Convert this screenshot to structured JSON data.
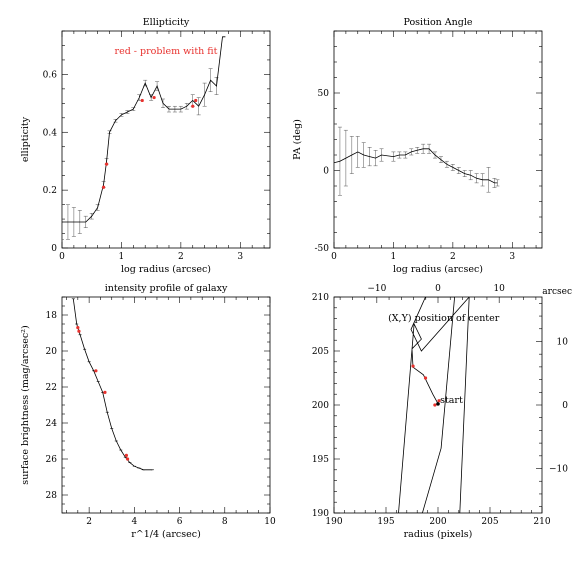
{
  "chart_data": [
    {
      "id": "ellipticity",
      "type": "line",
      "title": "Ellipticity",
      "xlabel": "log radius (arcsec)",
      "ylabel": "ellipticity",
      "xlim": [
        0,
        3.5
      ],
      "ylim": [
        0,
        0.75
      ],
      "xticks": [
        0,
        1,
        2,
        3
      ],
      "yticks": [
        0,
        0.2,
        0.4,
        0.6
      ],
      "ytick_labels": [
        "0",
        "0.2",
        "0.4",
        "0.6"
      ],
      "annotation": {
        "text": "red - problem with fit",
        "color": "#e8322e"
      },
      "x": [
        0.0,
        0.1,
        0.2,
        0.3,
        0.4,
        0.5,
        0.6,
        0.7,
        0.75,
        0.8,
        0.9,
        1.0,
        1.1,
        1.2,
        1.3,
        1.4,
        1.5,
        1.6,
        1.7,
        1.8,
        1.9,
        2.0,
        2.1,
        2.2,
        2.3,
        2.4,
        2.5,
        2.6,
        2.7,
        2.75
      ],
      "y": [
        0.09,
        0.09,
        0.09,
        0.09,
        0.09,
        0.11,
        0.14,
        0.22,
        0.3,
        0.4,
        0.44,
        0.46,
        0.47,
        0.48,
        0.52,
        0.57,
        0.52,
        0.56,
        0.5,
        0.48,
        0.48,
        0.48,
        0.49,
        0.51,
        0.49,
        0.53,
        0.58,
        0.56,
        0.73,
        0.73
      ],
      "err": [
        0.06,
        0.06,
        0.05,
        0.04,
        0.02,
        0.01,
        0.01,
        0.01,
        0.01,
        0.005,
        0.005,
        0.005,
        0.005,
        0.005,
        0.01,
        0.01,
        0.01,
        0.015,
        0.015,
        0.01,
        0.01,
        0.01,
        0.01,
        0.02,
        0.03,
        0.04,
        0.04,
        0.03,
        0.0,
        0.0
      ],
      "red_points": [
        [
          0.7,
          0.21
        ],
        [
          0.75,
          0.29
        ],
        [
          1.35,
          0.51
        ],
        [
          1.55,
          0.52
        ],
        [
          2.2,
          0.49
        ],
        [
          2.25,
          0.51
        ]
      ]
    },
    {
      "id": "position-angle",
      "type": "line",
      "title": "Position Angle",
      "xlabel": "log radius (arcsec)",
      "ylabel": "PA (deg)",
      "xlim": [
        0,
        3.5
      ],
      "ylim": [
        -50,
        90
      ],
      "xticks": [
        0,
        1,
        2,
        3
      ],
      "yticks": [
        -50,
        0,
        50
      ],
      "ytick_labels": [
        "-50",
        "0",
        "50"
      ],
      "x": [
        0.0,
        0.1,
        0.2,
        0.3,
        0.4,
        0.5,
        0.6,
        0.7,
        0.8,
        1.0,
        1.1,
        1.2,
        1.3,
        1.4,
        1.5,
        1.6,
        1.7,
        1.8,
        1.9,
        2.0,
        2.1,
        2.2,
        2.3,
        2.4,
        2.5,
        2.6,
        2.7,
        2.75
      ],
      "y": [
        5,
        6,
        8,
        10,
        12,
        10,
        9,
        8,
        10,
        9,
        10,
        10,
        12,
        13,
        14,
        14,
        10,
        7,
        4,
        2,
        0,
        -2,
        -3,
        -5,
        -6,
        -6,
        -8,
        -8
      ],
      "err": [
        25,
        22,
        18,
        12,
        10,
        8,
        6,
        5,
        4,
        3,
        2,
        2,
        2,
        2,
        3,
        3,
        2,
        2,
        2,
        2,
        2,
        2,
        3,
        3,
        4,
        8,
        3,
        2
      ],
      "red_points": []
    },
    {
      "id": "intensity-profile",
      "type": "line",
      "title": "intensity profile of galaxy",
      "xlabel": "r^1/4 (arcsec)",
      "ylabel": "surface brightness (mag/arcsec²)",
      "xlim": [
        0.8,
        10
      ],
      "ylim": [
        29,
        17
      ],
      "xticks": [
        2,
        4,
        6,
        8,
        10
      ],
      "yticks": [
        18,
        20,
        22,
        24,
        26,
        28
      ],
      "ytick_labels": [
        "18",
        "20",
        "22",
        "24",
        "26",
        "28"
      ],
      "x": [
        1.3,
        1.45,
        1.6,
        1.8,
        2.0,
        2.2,
        2.4,
        2.6,
        2.8,
        3.0,
        3.2,
        3.4,
        3.6,
        3.8,
        4.0,
        4.2,
        4.4,
        4.8
      ],
      "y": [
        17.1,
        18.5,
        19.1,
        19.9,
        20.6,
        21.1,
        21.7,
        22.3,
        23.4,
        24.3,
        25.0,
        25.5,
        25.9,
        26.2,
        26.4,
        26.5,
        26.6,
        26.6
      ],
      "red_points": [
        [
          1.5,
          18.7
        ],
        [
          1.55,
          18.9
        ],
        [
          2.3,
          21.1
        ],
        [
          2.7,
          22.3
        ],
        [
          3.65,
          25.8
        ],
        [
          3.7,
          26.0
        ]
      ]
    },
    {
      "id": "center-position",
      "type": "line",
      "title": "(X,Y) position of center",
      "xlabel": "radius (pixels)",
      "ylabel": "",
      "top_axis_label": "arcsec",
      "xlim": [
        190,
        210
      ],
      "ylim": [
        190,
        210
      ],
      "xticks": [
        190,
        195,
        200,
        205,
        210
      ],
      "yticks": [
        190,
        195,
        200,
        205,
        210
      ],
      "ytick_labels": [
        "190",
        "195",
        "200",
        "205",
        "210"
      ],
      "secondary_xlim": [
        -17,
        17
      ],
      "secondary_xticks": [
        -10,
        0,
        10
      ],
      "secondary_xtick_labels": [
        "−10",
        "0",
        "10"
      ],
      "secondary_ylim": [
        -17,
        17
      ],
      "secondary_yticks": [
        -10,
        0,
        10
      ],
      "secondary_ytick_labels": [
        "−10",
        "0",
        "10"
      ],
      "annotation_start": "start",
      "x": [
        200.0,
        199.9,
        199.5,
        199.0,
        198.6,
        197.6,
        197.5,
        198.4,
        197.7,
        196.2,
        198.5,
        200.3,
        201.6,
        198.8,
        197.4,
        198.4,
        203.0,
        202.1
      ],
      "y": [
        200.1,
        200.3,
        201.0,
        202.0,
        202.8,
        203.5,
        205.2,
        206.1,
        207.5,
        190.0,
        190.0,
        196.0,
        210.0,
        210.0,
        207.0,
        205.0,
        210.0,
        190.0
      ],
      "red_points": [
        [
          197.6,
          203.6
        ],
        [
          198.8,
          202.5
        ],
        [
          199.7,
          200.0
        ],
        [
          200.1,
          200.4
        ]
      ]
    }
  ]
}
